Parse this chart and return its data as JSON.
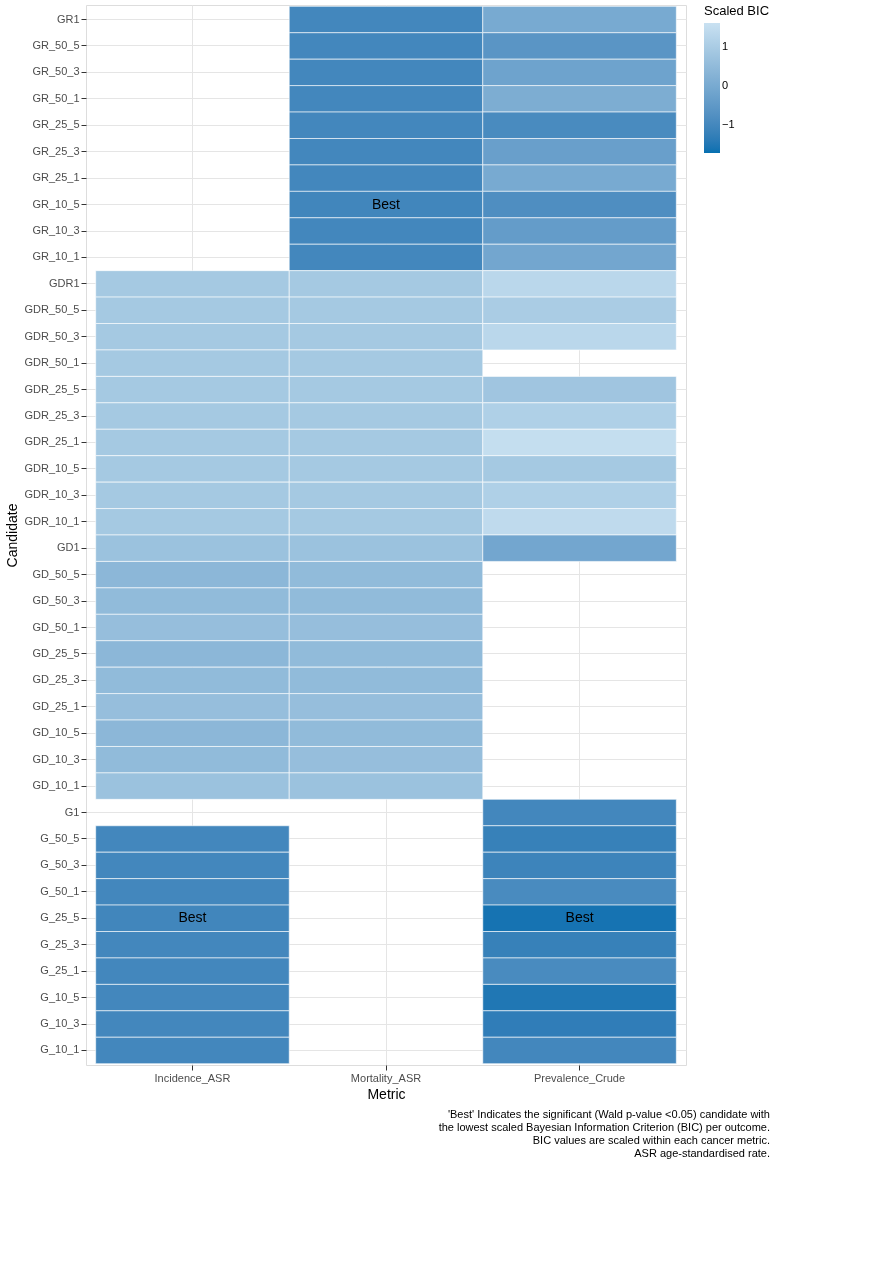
{
  "chart_data": {
    "type": "heatmap",
    "xlabel": "Metric",
    "ylabel": "Candidate",
    "clabel": "Scaled BIC",
    "categories": [
      "Incidence_ASR",
      "Mortality_ASR",
      "Prevalence_Crude"
    ],
    "y_categories": [
      "GR1",
      "GR_50_5",
      "GR_50_3",
      "GR_50_1",
      "GR_25_5",
      "GR_25_3",
      "GR_25_1",
      "GR_10_5",
      "GR_10_3",
      "GR_10_1",
      "GDR1",
      "GDR_50_5",
      "GDR_50_3",
      "GDR_50_1",
      "GDR_25_5",
      "GDR_25_3",
      "GDR_25_1",
      "GDR_10_5",
      "GDR_10_3",
      "GDR_10_1",
      "GD1",
      "GD_50_5",
      "GD_50_3",
      "GD_50_1",
      "GD_25_5",
      "GD_25_3",
      "GD_25_1",
      "GD_10_5",
      "GD_10_3",
      "GD_10_1",
      "G1",
      "G_50_5",
      "G_50_3",
      "G_50_1",
      "G_25_5",
      "G_25_3",
      "G_25_1",
      "G_10_5",
      "G_10_3",
      "G_10_1"
    ],
    "cells": [
      [
        null,
        -1.0,
        0.0
      ],
      [
        null,
        -1.0,
        -0.6
      ],
      [
        null,
        -1.0,
        -0.2
      ],
      [
        null,
        -1.0,
        0.1
      ],
      [
        null,
        -1.0,
        -0.9
      ],
      [
        null,
        -1.0,
        -0.3
      ],
      [
        null,
        -1.0,
        0.0
      ],
      [
        null,
        -1.05,
        -0.8
      ],
      [
        null,
        -1.0,
        -0.4
      ],
      [
        null,
        -1.0,
        -0.1
      ],
      [
        0.9,
        0.9,
        1.3
      ],
      [
        0.9,
        0.9,
        1.0
      ],
      [
        0.9,
        0.9,
        1.3
      ],
      [
        0.9,
        0.9,
        null
      ],
      [
        0.9,
        0.9,
        0.8
      ],
      [
        0.9,
        0.9,
        1.1
      ],
      [
        0.9,
        0.9,
        1.5
      ],
      [
        0.9,
        0.9,
        0.9
      ],
      [
        0.9,
        0.9,
        1.1
      ],
      [
        0.9,
        0.9,
        1.4
      ],
      [
        0.7,
        0.7,
        -0.1
      ],
      [
        0.4,
        0.5,
        null
      ],
      [
        0.5,
        0.5,
        null
      ],
      [
        0.6,
        0.6,
        null
      ],
      [
        0.4,
        0.5,
        null
      ],
      [
        0.5,
        0.5,
        null
      ],
      [
        0.6,
        0.6,
        null
      ],
      [
        0.4,
        0.5,
        null
      ],
      [
        0.5,
        0.6,
        null
      ],
      [
        0.7,
        0.7,
        null
      ],
      [
        null,
        null,
        -1.0
      ],
      [
        -1.0,
        null,
        -1.2
      ],
      [
        -1.0,
        null,
        -1.1
      ],
      [
        -1.0,
        null,
        -0.9
      ],
      [
        -1.05,
        null,
        -1.6
      ],
      [
        -1.0,
        null,
        -1.2
      ],
      [
        -1.0,
        null,
        -0.9
      ],
      [
        -1.0,
        null,
        -1.5
      ],
      [
        -1.0,
        null,
        -1.3
      ],
      [
        -1.0,
        null,
        -1.0
      ]
    ],
    "cell_labels": [
      [
        null,
        null,
        null
      ],
      [
        null,
        null,
        null
      ],
      [
        null,
        null,
        null
      ],
      [
        null,
        null,
        null
      ],
      [
        null,
        null,
        null
      ],
      [
        null,
        null,
        null
      ],
      [
        null,
        null,
        null
      ],
      [
        null,
        "Best",
        null
      ],
      [
        null,
        null,
        null
      ],
      [
        null,
        null,
        null
      ],
      [
        null,
        null,
        null
      ],
      [
        null,
        null,
        null
      ],
      [
        null,
        null,
        null
      ],
      [
        null,
        null,
        null
      ],
      [
        null,
        null,
        null
      ],
      [
        null,
        null,
        null
      ],
      [
        null,
        null,
        null
      ],
      [
        null,
        null,
        null
      ],
      [
        null,
        null,
        null
      ],
      [
        null,
        null,
        null
      ],
      [
        null,
        null,
        null
      ],
      [
        null,
        null,
        null
      ],
      [
        null,
        null,
        null
      ],
      [
        null,
        null,
        null
      ],
      [
        null,
        null,
        null
      ],
      [
        null,
        null,
        null
      ],
      [
        null,
        null,
        null
      ],
      [
        null,
        null,
        null
      ],
      [
        null,
        null,
        null
      ],
      [
        null,
        null,
        null
      ],
      [
        null,
        null,
        null
      ],
      [
        null,
        null,
        null
      ],
      [
        null,
        null,
        null
      ],
      [
        null,
        null,
        null
      ],
      [
        "Best",
        null,
        "Best"
      ],
      [
        null,
        null,
        null
      ],
      [
        null,
        null,
        null
      ],
      [
        null,
        null,
        null
      ],
      [
        null,
        null,
        null
      ],
      [
        null,
        null,
        null
      ]
    ],
    "clim": [
      -1.7,
      1.6
    ],
    "cticks": [
      -1,
      0,
      1
    ],
    "grid": true,
    "annotations": [
      "'Best' Indicates the significant (Wald p-value <0.05) candidate with",
      "the lowest scaled Bayesian Information Criterion (BIC) per outcome.",
      "BIC values are scaled within each cancer metric.",
      "ASR age-standardised rate."
    ]
  }
}
